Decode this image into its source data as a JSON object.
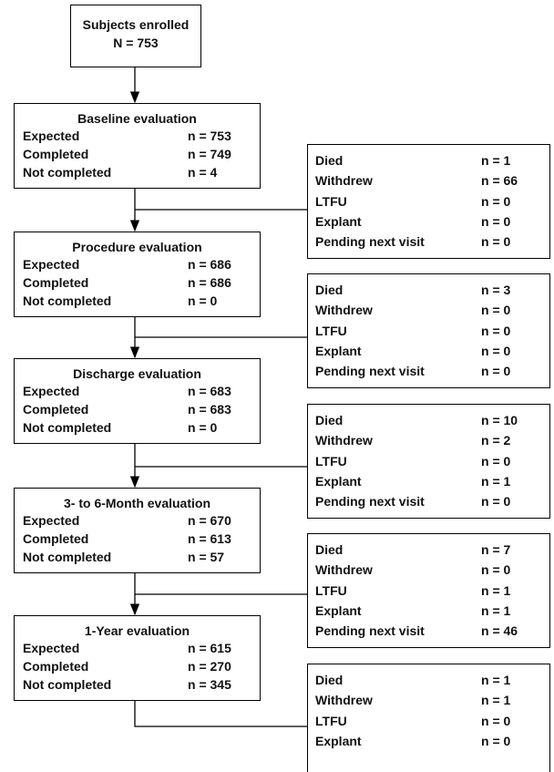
{
  "header": {
    "title": "Subjects enrolled",
    "count": "N = 753"
  },
  "evaluations": [
    {
      "title": "Baseline evaluation",
      "rows": [
        {
          "label": "Expected",
          "value": "n = 753"
        },
        {
          "label": "Completed",
          "value": "n = 749"
        },
        {
          "label": "Not completed",
          "value": "n = 4"
        }
      ]
    },
    {
      "title": "Procedure evaluation",
      "rows": [
        {
          "label": "Expected",
          "value": "n = 686"
        },
        {
          "label": "Completed",
          "value": "n = 686"
        },
        {
          "label": "Not completed",
          "value": "n = 0"
        }
      ]
    },
    {
      "title": "Discharge evaluation",
      "rows": [
        {
          "label": "Expected",
          "value": "n = 683"
        },
        {
          "label": "Completed",
          "value": "n = 683"
        },
        {
          "label": "Not completed",
          "value": "n = 0"
        }
      ]
    },
    {
      "title": "3- to 6-Month evaluation",
      "rows": [
        {
          "label": "Expected",
          "value": "n = 670"
        },
        {
          "label": "Completed",
          "value": "n = 613"
        },
        {
          "label": "Not completed",
          "value": "n = 57"
        }
      ]
    },
    {
      "title": "1-Year evaluation",
      "rows": [
        {
          "label": "Expected",
          "value": "n = 615"
        },
        {
          "label": "Completed",
          "value": "n = 270"
        },
        {
          "label": "Not completed",
          "value": "n = 345"
        }
      ]
    }
  ],
  "exclusions": [
    {
      "rows": [
        {
          "label": "Died",
          "value": "n = 1"
        },
        {
          "label": "Withdrew",
          "value": "n = 66"
        },
        {
          "label": "LTFU",
          "value": "n = 0"
        },
        {
          "label": "Explant",
          "value": "n = 0"
        },
        {
          "label": "Pending next visit",
          "value": "n = 0"
        }
      ]
    },
    {
      "rows": [
        {
          "label": "Died",
          "value": "n = 3"
        },
        {
          "label": "Withdrew",
          "value": "n = 0"
        },
        {
          "label": "LTFU",
          "value": "n = 0"
        },
        {
          "label": "Explant",
          "value": "n = 0"
        },
        {
          "label": "Pending next visit",
          "value": "n = 0"
        }
      ]
    },
    {
      "rows": [
        {
          "label": "Died",
          "value": "n = 10"
        },
        {
          "label": "Withdrew",
          "value": "n = 2"
        },
        {
          "label": "LTFU",
          "value": "n = 0"
        },
        {
          "label": "Explant",
          "value": "n = 1"
        },
        {
          "label": "Pending next visit",
          "value": "n = 0"
        }
      ]
    },
    {
      "rows": [
        {
          "label": "Died",
          "value": "n = 7"
        },
        {
          "label": "Withdrew",
          "value": "n = 0"
        },
        {
          "label": "LTFU",
          "value": "n = 1"
        },
        {
          "label": "Explant",
          "value": "n = 1"
        },
        {
          "label": "Pending next visit",
          "value": "n = 46"
        }
      ]
    },
    {
      "rows": [
        {
          "label": "Died",
          "value": "n = 1"
        },
        {
          "label": "Withdrew",
          "value": "n = 1"
        },
        {
          "label": "LTFU",
          "value": "n = 0"
        },
        {
          "label": "Explant",
          "value": "n = 0"
        }
      ]
    }
  ]
}
